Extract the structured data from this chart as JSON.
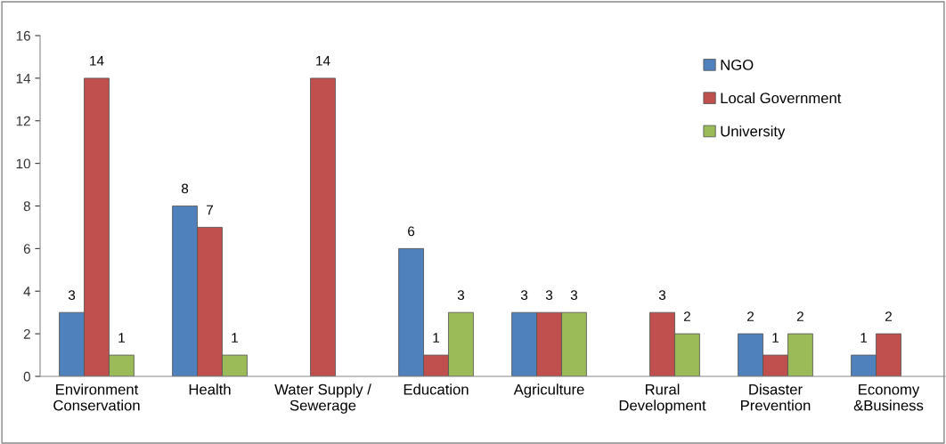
{
  "chart_data": {
    "type": "bar",
    "categories": [
      "Environment Conservation",
      "Health",
      "Water Supply / Sewerage",
      "Education",
      "Agriculture",
      "Rural Development",
      "Disaster Prevention",
      "Economy &Business"
    ],
    "series": [
      {
        "name": "NGO",
        "color": "#4f81bd",
        "values": [
          3,
          8,
          null,
          6,
          3,
          null,
          2,
          1
        ]
      },
      {
        "name": "Local Government",
        "color": "#c0504d",
        "values": [
          14,
          7,
          14,
          1,
          3,
          3,
          1,
          2
        ]
      },
      {
        "name": "University",
        "color": "#9bbb59",
        "values": [
          1,
          1,
          null,
          3,
          3,
          2,
          2,
          null
        ]
      }
    ],
    "ylim": [
      0,
      16
    ],
    "yticks": [
      0,
      2,
      4,
      6,
      8,
      10,
      12,
      14,
      16
    ],
    "grid": false,
    "legend": "top right",
    "data_labels": true
  }
}
